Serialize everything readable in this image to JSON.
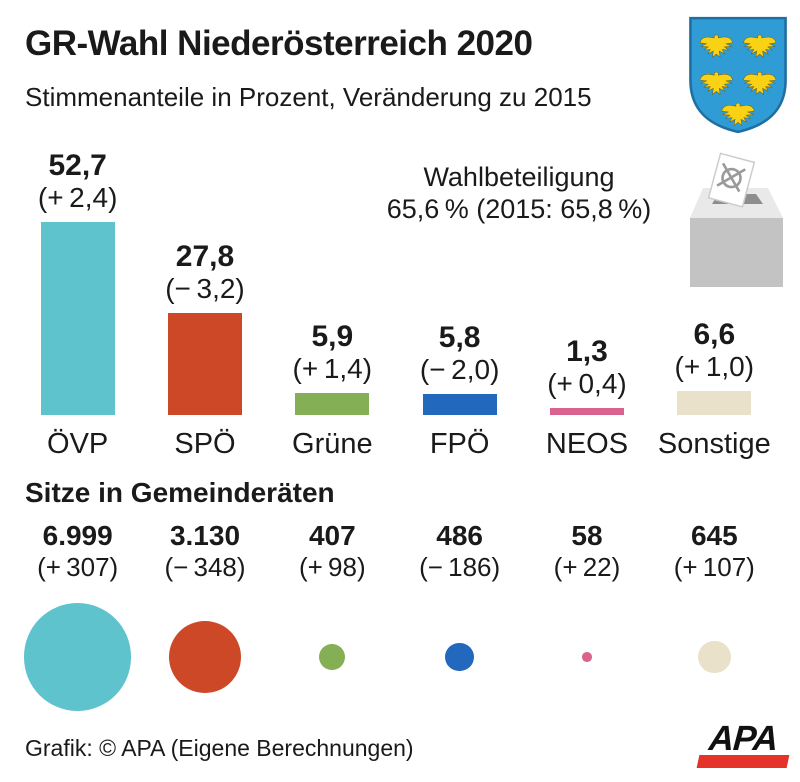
{
  "header": {
    "title": "GR-Wahl Niederösterreich 2020",
    "subtitle": "Stimmenanteile in Prozent, Veränderung zu 2015"
  },
  "turnout": {
    "label": "Wahlbeteiligung",
    "value": "65,6 % (2015: 65,8 %)"
  },
  "seats": {
    "heading": "Sitze in Gemeinderäten"
  },
  "footer": {
    "credit": "Grafik: © APA (Eigene Berechnungen)",
    "logo_text": "APA"
  },
  "icons": {
    "coat_of_arms": "lower-austria-coat-of-arms",
    "ballot_box": "ballot-box-icon",
    "apa_logo": "apa-news-agency-logo"
  },
  "colors": {
    "text": "#1a1a1a",
    "apa_red": "#e6332a",
    "shield_blue": "#2f9cd6",
    "eagle_gold": "#f9d216",
    "box_lid": "#e9e9e9",
    "box_front": "#c3c3c3",
    "box_slot": "#8e8e8e"
  },
  "parties": [
    {
      "name": "ÖVP",
      "share_label": "52,7",
      "share_change_label": "(+ 2,4)",
      "share": 52.7,
      "share_change": 2.4,
      "seats_label": "6.999",
      "seats_change_label": "(+ 307)",
      "seats": 6999,
      "seats_change": 307,
      "color": "#5fc3ce"
    },
    {
      "name": "SPÖ",
      "share_label": "27,8",
      "share_change_label": "(− 3,2)",
      "share": 27.8,
      "share_change": -3.2,
      "seats_label": "3.130",
      "seats_change_label": "(− 348)",
      "seats": 3130,
      "seats_change": -348,
      "color": "#cc4827"
    },
    {
      "name": "Grüne",
      "share_label": "5,9",
      "share_change_label": "(+ 1,4)",
      "share": 5.9,
      "share_change": 1.4,
      "seats_label": "407",
      "seats_change_label": "(+ 98)",
      "seats": 407,
      "seats_change": 98,
      "color": "#85af55"
    },
    {
      "name": "FPÖ",
      "share_label": "5,8",
      "share_change_label": "(− 2,0)",
      "share": 5.8,
      "share_change": -2.0,
      "seats_label": "486",
      "seats_change_label": "(− 186)",
      "seats": 486,
      "seats_change": -186,
      "color": "#2268bd"
    },
    {
      "name": "NEOS",
      "share_label": "1,3",
      "share_change_label": "(+ 0,4)",
      "share": 1.3,
      "share_change": 0.4,
      "seats_label": "58",
      "seats_change_label": "(+ 22)",
      "seats": 58,
      "seats_change": 22,
      "color": "#d9628e"
    },
    {
      "name": "Sonstige",
      "share_label": "6,6",
      "share_change_label": "(+ 1,0)",
      "share": 6.6,
      "share_change": 1.0,
      "seats_label": "645",
      "seats_change_label": "(+ 107)",
      "seats": 645,
      "seats_change": 107,
      "color": "#e9e1c9"
    }
  ],
  "chart_data": [
    {
      "type": "bar",
      "title": "GR-Wahl Niederösterreich 2020",
      "subtitle": "Stimmenanteile in Prozent, Veränderung zu 2015",
      "categories": [
        "ÖVP",
        "SPÖ",
        "Grüne",
        "FPÖ",
        "NEOS",
        "Sonstige"
      ],
      "series": [
        {
          "name": "Stimmenanteil 2020 in %",
          "values": [
            52.7,
            27.8,
            5.9,
            5.8,
            1.3,
            6.6
          ]
        },
        {
          "name": "Veränderung zu 2015 in Prozentpunkten",
          "values": [
            2.4,
            -3.2,
            1.4,
            -2.0,
            0.4,
            1.0
          ]
        }
      ],
      "bar_colors": [
        "#5fc3ce",
        "#cc4827",
        "#85af55",
        "#2268bd",
        "#d9628e",
        "#e9e1c9"
      ],
      "ylim": [
        0,
        55
      ],
      "grid": false,
      "legend": "none",
      "annotations": [
        "Wahlbeteiligung 65,6 % (2015: 65,8 %)"
      ]
    },
    {
      "type": "scatter",
      "title": "Sitze in Gemeinderäten",
      "categories": [
        "ÖVP",
        "SPÖ",
        "Grüne",
        "FPÖ",
        "NEOS",
        "Sonstige"
      ],
      "series": [
        {
          "name": "Sitze 2020",
          "values": [
            6999,
            3130,
            407,
            486,
            58,
            645
          ]
        },
        {
          "name": "Veränderung zu 2015",
          "values": [
            307,
            -348,
            98,
            -186,
            22,
            107
          ]
        }
      ],
      "layout_hint": "Kreisfläche proportional zur Sitzanzahl, eingefärbt in Parteifarben"
    }
  ]
}
